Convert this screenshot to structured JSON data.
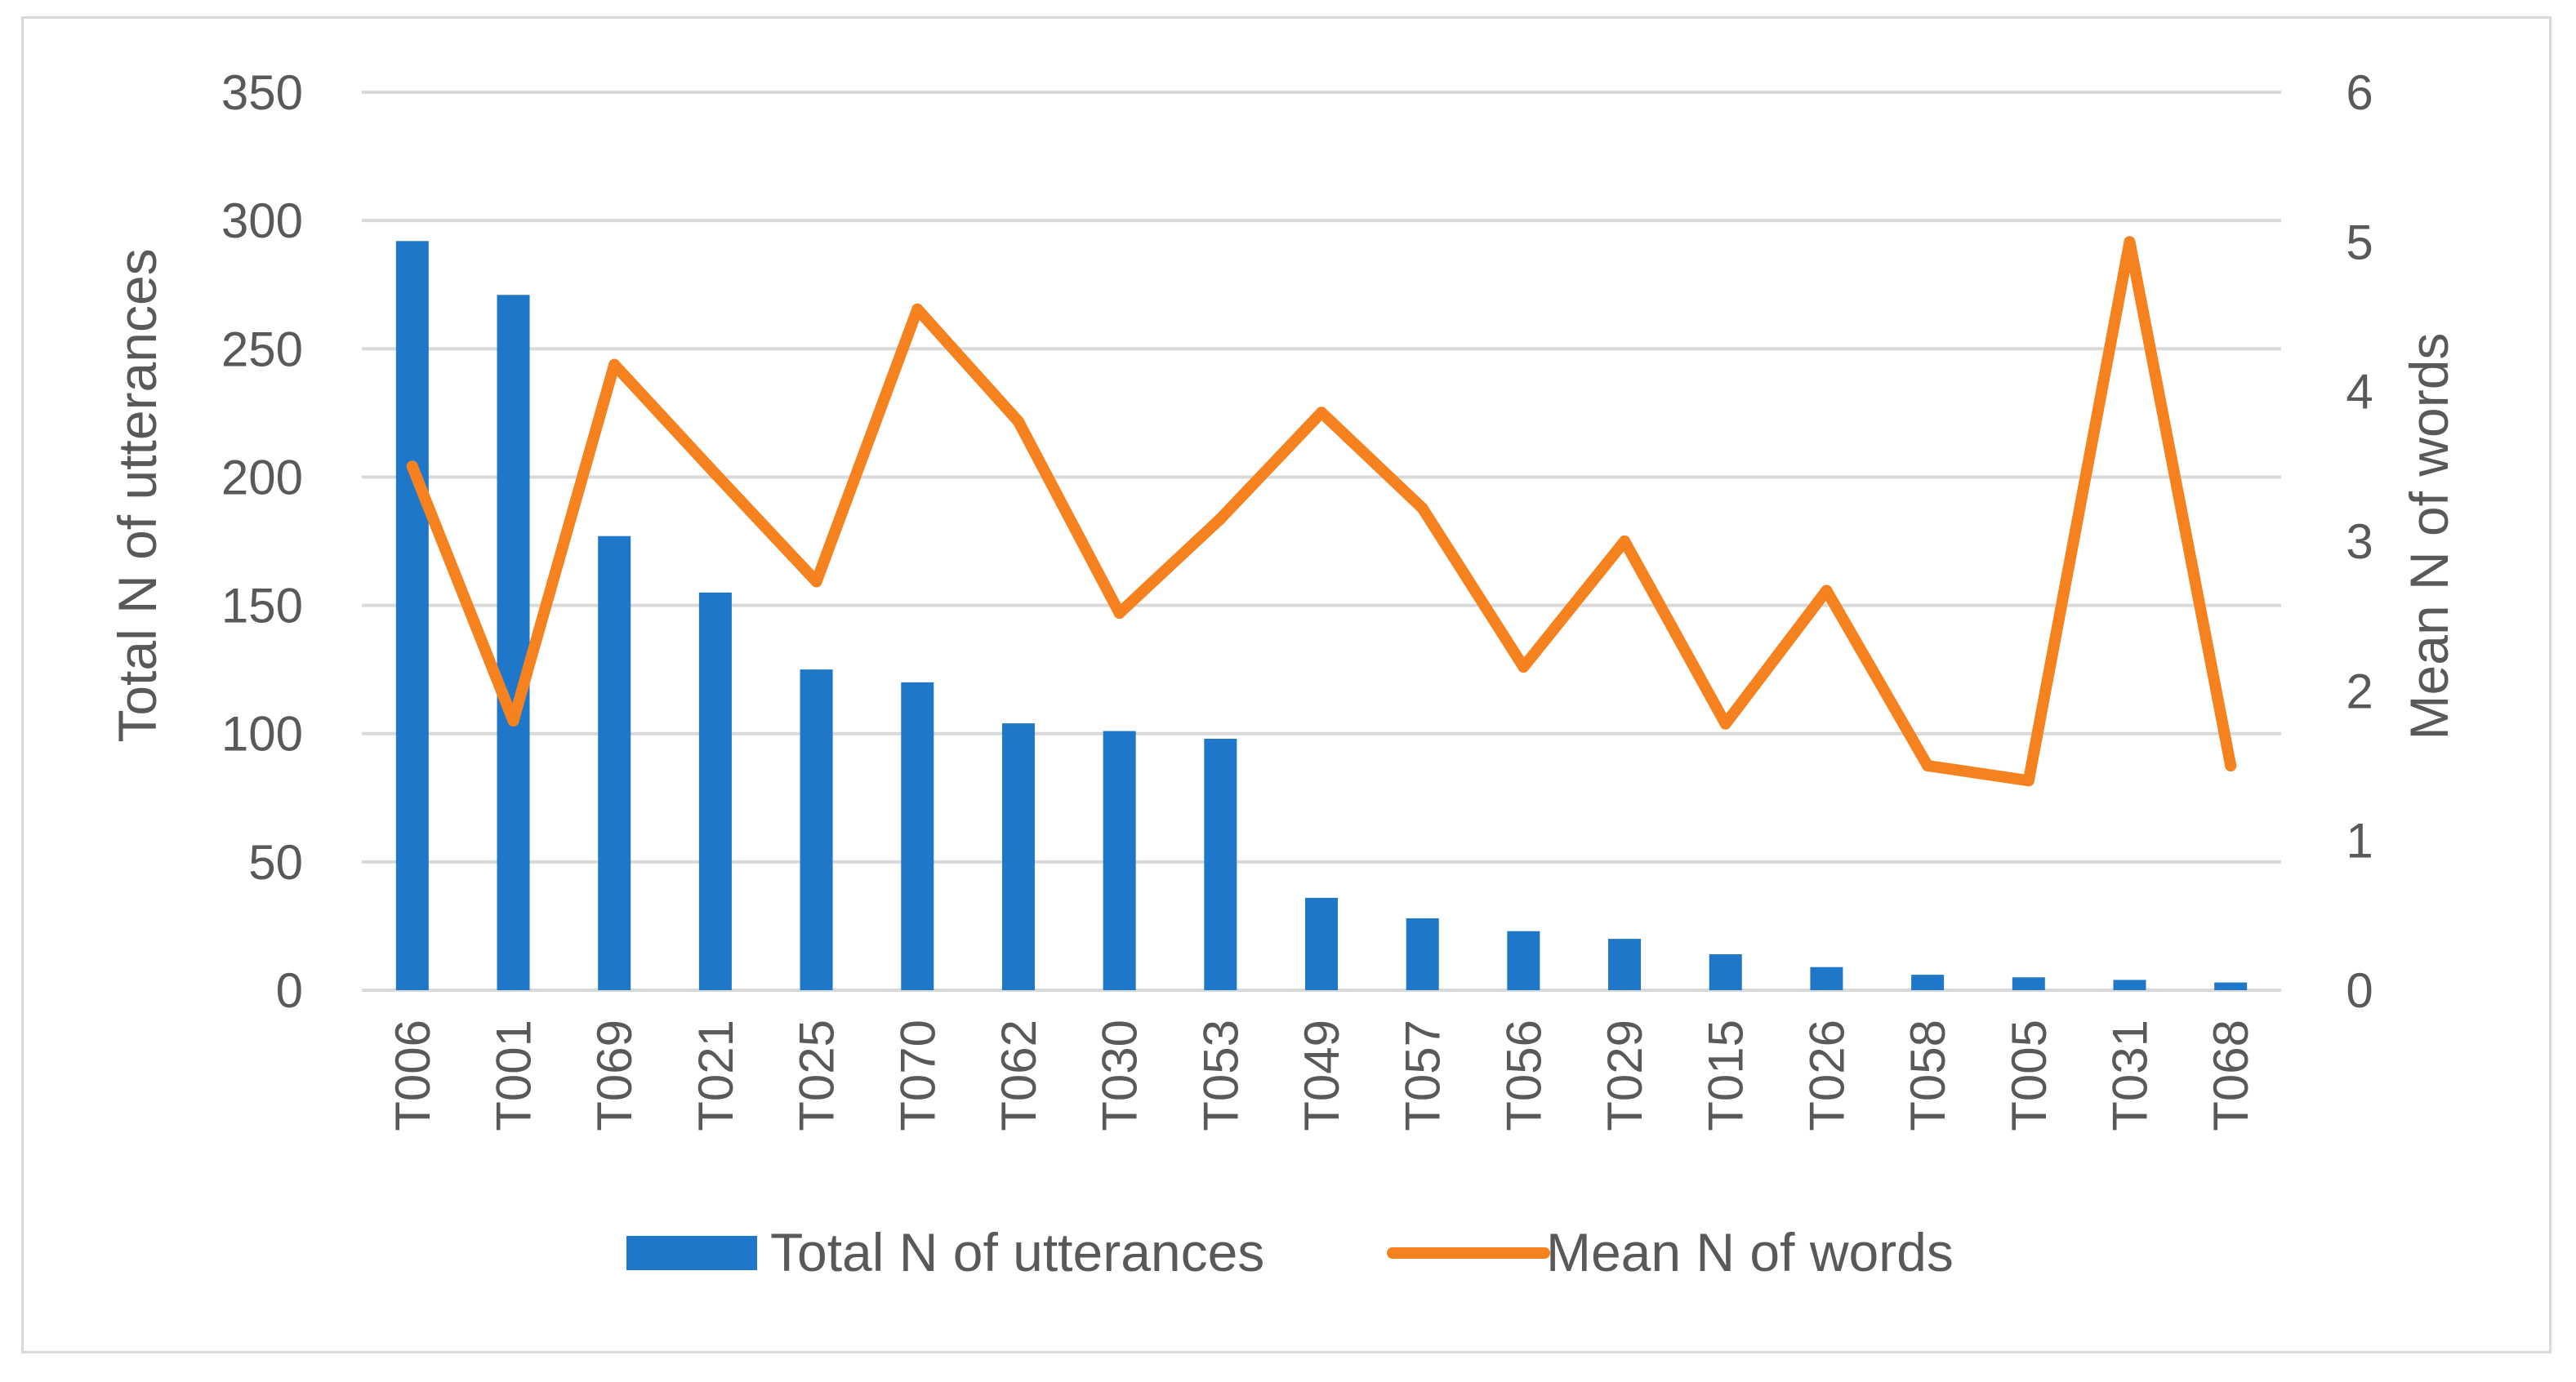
{
  "chart_data": {
    "type": "bar+line",
    "title": "",
    "categories": [
      "T006",
      "T001",
      "T069",
      "T021",
      "T025",
      "T070",
      "T062",
      "T030",
      "T053",
      "T049",
      "T057",
      "T056",
      "T029",
      "T015",
      "T026",
      "T058",
      "T005",
      "T031",
      "T068"
    ],
    "series": [
      {
        "name": "Total N of utterances",
        "type": "bar",
        "axis": "left",
        "color": "#1f77c9",
        "values": [
          292,
          271,
          177,
          155,
          125,
          120,
          104,
          101,
          98,
          36,
          28,
          23,
          20,
          14,
          9,
          6,
          5,
          4,
          3
        ]
      },
      {
        "name": "Mean N of words",
        "type": "line",
        "axis": "right",
        "color": "#f5811f",
        "values": [
          3.5,
          1.8,
          4.18,
          3.45,
          2.73,
          4.55,
          3.8,
          2.52,
          3.15,
          3.86,
          3.22,
          2.16,
          3.0,
          1.78,
          2.67,
          1.5,
          1.4,
          5.0,
          1.5
        ]
      }
    ],
    "y_left": {
      "label": "Total N of utterances",
      "ylim": [
        0,
        350
      ],
      "ticks": [
        "0",
        "50",
        "100",
        "150",
        "200",
        "250",
        "300",
        "350"
      ]
    },
    "y_right": {
      "label": "Mean N of words",
      "ylim": [
        0,
        6
      ],
      "ticks": [
        "0",
        "1",
        "2",
        "3",
        "4",
        "5",
        "6"
      ]
    },
    "xlabel": "",
    "grid": true,
    "legend_position": "bottom"
  }
}
